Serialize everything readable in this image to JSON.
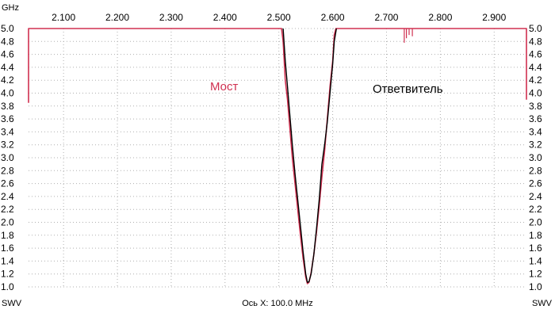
{
  "chart_data": {
    "type": "line",
    "x_unit_label": "GHz",
    "y_unit_label": "SWV",
    "x_ticks": [
      "2.100",
      "2.200",
      "2.300",
      "2.400",
      "2.500",
      "2.600",
      "2.700",
      "2.800",
      "2.900"
    ],
    "x_tick_values": [
      2.1,
      2.2,
      2.3,
      2.4,
      2.5,
      2.6,
      2.7,
      2.8,
      2.9
    ],
    "y_ticks": [
      "1.0",
      "1.2",
      "1.4",
      "1.6",
      "1.8",
      "2.0",
      "2.2",
      "2.4",
      "2.6",
      "2.8",
      "3.0",
      "3.2",
      "3.4",
      "3.6",
      "3.8",
      "4.0",
      "4.2",
      "4.4",
      "4.6",
      "4.8",
      "5.0"
    ],
    "y_tick_values": [
      1.0,
      1.2,
      1.4,
      1.6,
      1.8,
      2.0,
      2.2,
      2.4,
      2.6,
      2.8,
      3.0,
      3.2,
      3.4,
      3.6,
      3.8,
      4.0,
      4.2,
      4.4,
      4.6,
      4.8,
      5.0
    ],
    "xlim": [
      2.035,
      2.96
    ],
    "ylim": [
      1.0,
      5.0
    ],
    "xlabel": "Ось X: 100.0 MHz",
    "grid": true,
    "series": [
      {
        "name": "Мост",
        "color": "#d03050",
        "x": [
          2.035,
          2.035,
          2.505,
          2.508,
          2.512,
          2.516,
          2.52,
          2.525,
          2.53,
          2.535,
          2.54,
          2.545,
          2.55,
          2.553,
          2.556,
          2.56,
          2.565,
          2.57,
          2.575,
          2.58,
          2.585,
          2.59,
          2.595,
          2.6,
          2.603,
          2.606,
          2.609,
          2.96,
          2.96
        ],
        "y": [
          3.85,
          5.0,
          5.0,
          4.8,
          4.2,
          3.9,
          3.5,
          3.0,
          2.6,
          2.2,
          1.8,
          1.45,
          1.15,
          1.05,
          1.07,
          1.22,
          1.5,
          1.85,
          2.25,
          2.7,
          3.1,
          3.6,
          4.1,
          4.5,
          4.9,
          5.0,
          5.0,
          5.0,
          3.9
        ]
      },
      {
        "name": "Ответвитель",
        "color": "#000000",
        "x": [
          2.508,
          2.512,
          2.516,
          2.52,
          2.525,
          2.53,
          2.535,
          2.54,
          2.545,
          2.55,
          2.553,
          2.556,
          2.56,
          2.565,
          2.57,
          2.575,
          2.58,
          2.585,
          2.59,
          2.595,
          2.6,
          2.603,
          2.607
        ],
        "y": [
          5.0,
          4.5,
          4.1,
          3.7,
          3.2,
          2.75,
          2.35,
          1.95,
          1.55,
          1.2,
          1.07,
          1.08,
          1.2,
          1.5,
          1.9,
          2.35,
          2.9,
          3.2,
          3.55,
          4.0,
          4.45,
          4.8,
          5.0
        ]
      }
    ]
  }
}
